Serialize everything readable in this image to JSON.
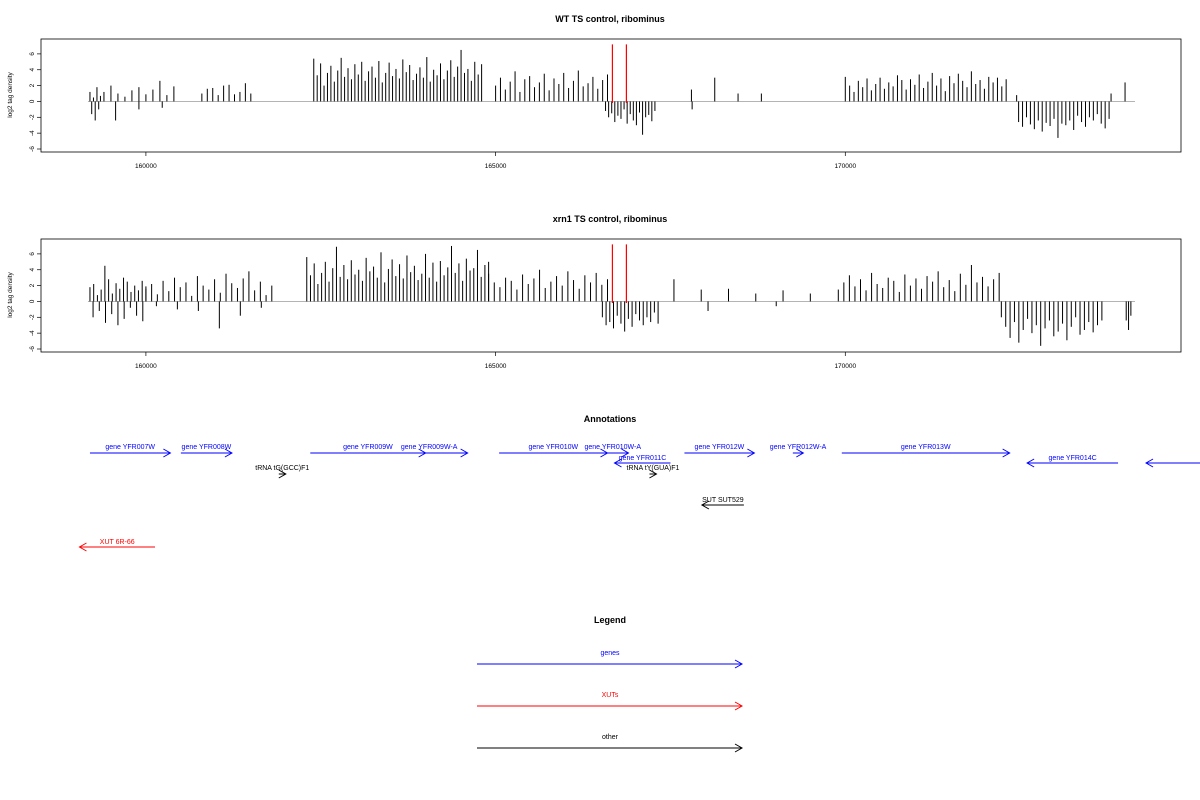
{
  "chart_data": [
    {
      "type": "bar",
      "title": "WT TS control, ribominus",
      "ylabel": "log2 tag density",
      "xlim": [
        158500,
        174800
      ],
      "ylim": [
        -6,
        7.5
      ],
      "xticks": [
        160000,
        165000,
        170000
      ],
      "yticks": [
        -6,
        -4,
        -2,
        0,
        2,
        4,
        6
      ],
      "baseline": 0,
      "marker_lines": [
        166670,
        166870
      ],
      "marker_color": "#ff0000",
      "bar_color": "#000000",
      "clusters": [
        {
          "from": 159200,
          "to": 159350,
          "pos": [
            1.2,
            0.5,
            1.8,
            0.7
          ],
          "neg": [
            -1.6,
            -2.4,
            -1.0
          ]
        },
        {
          "from": 159400,
          "to": 160400,
          "pos": [
            1.2,
            2.0,
            1.0,
            0.6,
            1.4,
            1.8,
            0.9,
            1.5,
            2.6,
            0.8,
            1.9
          ],
          "neg": [
            -2.4,
            -1.0,
            -0.8
          ]
        },
        {
          "from": 160800,
          "to": 161500,
          "pos": [
            1.0,
            1.6,
            1.7,
            0.8,
            2.0,
            2.1,
            0.9,
            1.2,
            2.3,
            1.0
          ],
          "neg": []
        },
        {
          "from": 162400,
          "to": 164800,
          "pos": [
            5.4,
            3.3,
            4.8,
            2.0,
            3.6,
            4.5,
            2.5,
            3.9,
            5.5,
            3.1,
            4.2,
            2.8,
            4.7,
            3.4,
            5.0,
            2.6,
            3.8,
            4.4,
            3.0,
            5.1,
            2.4,
            3.6,
            4.9,
            3.2,
            4.1,
            2.9,
            5.3,
            3.7,
            4.6,
            2.7,
            3.5,
            4.3,
            3.0,
            5.6,
            2.5,
            4.0,
            3.3,
            4.8,
            2.8,
            3.9,
            5.2,
            3.1,
            4.4,
            6.5,
            3.6,
            4.1,
            2.6,
            5.0,
            3.4,
            4.7
          ],
          "neg": []
        },
        {
          "from": 165000,
          "to": 166600,
          "pos": [
            2.0,
            3.0,
            1.5,
            2.5,
            3.8,
            1.2,
            2.8,
            3.2,
            1.8,
            2.4,
            3.5,
            1.4,
            2.9,
            2.2,
            3.6,
            1.7,
            2.6,
            3.9,
            1.9,
            2.3,
            3.1,
            1.6,
            2.7,
            3.4
          ],
          "neg": []
        },
        {
          "from": 166550,
          "to": 167300,
          "pos": [],
          "neg": [
            -1.2,
            -2.0,
            -1.5,
            -2.6,
            -1.8,
            -2.2,
            -1.0,
            -2.8,
            -1.6,
            -2.4,
            -3.0,
            -1.4,
            -4.2,
            -2.0,
            -1.7,
            -2.5,
            -1.2
          ]
        },
        {
          "from": 167800,
          "to": 168800,
          "pos": [
            1.5,
            3.0,
            1.0,
            1.0
          ],
          "neg": [
            -1.0
          ]
        },
        {
          "from": 170000,
          "to": 172300,
          "pos": [
            3.1,
            2.0,
            1.2,
            2.6,
            1.8,
            2.9,
            1.4,
            2.2,
            3.0,
            1.6,
            2.4,
            1.9,
            3.3,
            2.7,
            1.5,
            2.8,
            2.1,
            3.4,
            1.7,
            2.5,
            3.6,
            2.0,
            2.9,
            1.3,
            3.2,
            2.3,
            3.5,
            2.6,
            1.8,
            3.8,
            2.2,
            2.7,
            1.6,
            3.1,
            2.4,
            3.0,
            1.9,
            2.8
          ],
          "neg": []
        },
        {
          "from": 172450,
          "to": 173800,
          "pos": [
            0.8,
            1.0
          ],
          "neg": [
            -2.6,
            -3.2,
            -2.0,
            -2.9,
            -3.5,
            -2.4,
            -3.8,
            -2.7,
            -3.1,
            -2.2,
            -4.6,
            -2.8,
            -3.0,
            -2.4,
            -3.6,
            -1.8,
            -2.6,
            -3.2,
            -2.0,
            -2.4,
            -1.6,
            -2.8,
            -3.4,
            -2.2
          ]
        },
        {
          "from": 174000,
          "to": 174050,
          "pos": [
            2.4
          ],
          "neg": []
        }
      ]
    },
    {
      "type": "bar",
      "title": "xrn1 TS control, ribominus",
      "ylabel": "log2 tag density",
      "xlim": [
        158500,
        174800
      ],
      "ylim": [
        -6,
        7.5
      ],
      "xticks": [
        160000,
        165000,
        170000
      ],
      "yticks": [
        -6,
        -4,
        -2,
        0,
        2,
        4,
        6
      ],
      "baseline": 0,
      "marker_lines": [
        166670,
        166870
      ],
      "marker_color": "#ff0000",
      "bar_color": "#000000",
      "clusters": [
        {
          "from": 159200,
          "to": 160000,
          "pos": [
            1.8,
            2.2,
            0.8,
            1.5,
            4.5,
            2.8,
            1.0,
            2.3,
            1.6,
            3.0,
            2.5,
            1.2,
            2.0,
            1.4,
            2.6,
            1.9
          ],
          "neg": [
            -2.0,
            -1.2,
            -2.7,
            -1.6,
            -3.0,
            -2.2,
            -0.8,
            -1.8,
            -2.5
          ]
        },
        {
          "from": 160000,
          "to": 161800,
          "pos": [
            1.6,
            2.2,
            0.9,
            2.6,
            1.3,
            3.0,
            1.8,
            2.4,
            0.7,
            3.2,
            2.0,
            1.5,
            2.8,
            1.1,
            3.5,
            2.3,
            1.7,
            2.9,
            3.8,
            1.4,
            2.5,
            0.8,
            2.0
          ],
          "neg": [
            -0.6,
            -1.0,
            -1.2,
            -3.4,
            -1.8,
            -0.8
          ]
        },
        {
          "from": 162300,
          "to": 164900,
          "pos": [
            5.6,
            3.3,
            4.8,
            2.2,
            3.6,
            5.0,
            2.5,
            4.2,
            6.9,
            3.1,
            4.6,
            2.8,
            5.2,
            3.4,
            4.0,
            2.6,
            5.5,
            3.8,
            4.4,
            3.0,
            6.2,
            2.4,
            4.1,
            5.3,
            3.2,
            4.7,
            2.9,
            5.8,
            3.7,
            4.5,
            2.7,
            3.5,
            6.0,
            3.0,
            4.9,
            2.5,
            5.1,
            3.3,
            4.3,
            7.0,
            3.6,
            4.8,
            2.6,
            5.4,
            3.9,
            4.2,
            6.5,
            3.1,
            4.6,
            5.0
          ],
          "neg": []
        },
        {
          "from": 164900,
          "to": 166600,
          "pos": [
            3.5,
            2.4,
            1.8,
            3.0,
            2.6,
            1.5,
            3.4,
            2.2,
            2.9,
            4.0,
            1.7,
            2.5,
            3.2,
            2.0,
            3.8,
            2.7,
            1.6,
            3.3,
            2.4,
            3.6,
            2.1,
            2.8
          ],
          "neg": []
        },
        {
          "from": 166500,
          "to": 167350,
          "pos": [],
          "neg": [
            -2.0,
            -3.0,
            -2.6,
            -3.4,
            -1.8,
            -2.8,
            -3.8,
            -2.2,
            -3.2,
            -1.6,
            -2.4,
            -3.0,
            -2.0,
            -2.6,
            -1.4,
            -2.8
          ]
        },
        {
          "from": 167550,
          "to": 169500,
          "pos": [
            2.8,
            1.5,
            1.6,
            1.0,
            1.4,
            1.0
          ],
          "neg": [
            -1.2,
            -0.6
          ]
        },
        {
          "from": 169900,
          "to": 172200,
          "pos": [
            1.5,
            2.4,
            3.3,
            1.9,
            2.8,
            1.4,
            3.6,
            2.2,
            1.7,
            3.0,
            2.6,
            1.2,
            3.4,
            2.0,
            2.9,
            1.6,
            3.2,
            2.5,
            3.8,
            1.8,
            2.7,
            1.3,
            3.5,
            2.1,
            4.6,
            2.4,
            3.1,
            1.9,
            2.8,
            3.6
          ],
          "neg": []
        },
        {
          "from": 172200,
          "to": 173700,
          "pos": [],
          "neg": [
            -2.0,
            -3.2,
            -4.6,
            -2.6,
            -5.2,
            -3.6,
            -2.2,
            -4.0,
            -3.0,
            -5.6,
            -3.4,
            -2.4,
            -4.4,
            -3.8,
            -2.8,
            -4.9,
            -3.2,
            -2.0,
            -4.2,
            -3.6,
            -2.6,
            -3.9,
            -3.0,
            -2.4
          ]
        },
        {
          "from": 174000,
          "to": 174100,
          "pos": [],
          "neg": [
            -2.4,
            -3.6,
            -1.8
          ]
        }
      ]
    }
  ],
  "annotations": {
    "title": "Annotations",
    "xlim": [
      158500,
      174800
    ],
    "features": [
      {
        "label": "gene YFR007W",
        "x1": 159200,
        "x2": 160350,
        "row": 0,
        "color": "#0000ff",
        "dir": 1
      },
      {
        "label": "gene YFR008W",
        "x1": 160500,
        "x2": 161230,
        "row": 0,
        "color": "#0000ff",
        "dir": 1
      },
      {
        "label": "gene YFR009W",
        "x1": 162350,
        "x2": 164000,
        "row": 0,
        "color": "#0000ff",
        "dir": 1
      },
      {
        "label": "gene YFR009W-A",
        "x1": 163500,
        "x2": 164600,
        "row": 0,
        "color": "#0000ff",
        "dir": 1
      },
      {
        "label": "gene YFR010W",
        "x1": 165050,
        "x2": 166600,
        "row": 0,
        "color": "#0000ff",
        "dir": 1
      },
      {
        "label": "gene YFR010W-A",
        "x1": 166450,
        "x2": 166900,
        "row": 0,
        "color": "#0000ff",
        "dir": 1
      },
      {
        "label": "gene YFR012W",
        "x1": 167700,
        "x2": 168700,
        "row": 0,
        "color": "#0000ff",
        "dir": 1
      },
      {
        "label": "gene YFR012W-A",
        "x1": 169250,
        "x2": 169400,
        "row": 0,
        "color": "#0000ff",
        "dir": 1
      },
      {
        "label": "gene YFR013W",
        "x1": 169950,
        "x2": 172350,
        "row": 0,
        "color": "#0000ff",
        "dir": 1
      },
      {
        "label": "gene YFR011C",
        "x1": 166700,
        "x2": 167500,
        "row": 1,
        "color": "#0000ff",
        "dir": -1
      },
      {
        "label": "gene YFR014C",
        "x1": 172600,
        "x2": 173900,
        "row": 1,
        "color": "#0000ff",
        "dir": -1
      },
      {
        "label": "",
        "x1": 174300,
        "x2": 175200,
        "row": 1,
        "color": "#0000ff",
        "dir": -1
      },
      {
        "label": "tRNA tG(GCC)F1",
        "x1": 161900,
        "x2": 162000,
        "row": 2,
        "color": "#000000",
        "dir": 1
      },
      {
        "label": "tRNA tY(GUA)F1",
        "x1": 167200,
        "x2": 167300,
        "row": 2,
        "color": "#000000",
        "dir": 1
      },
      {
        "label": "SUT SUT529",
        "x1": 167950,
        "x2": 168550,
        "row": 3,
        "color": "#000000",
        "dir": -1
      },
      {
        "label": "XUT 6R-66",
        "x1": 159050,
        "x2": 160130,
        "row": 4,
        "color": "#ff0000",
        "dir": -1
      }
    ]
  },
  "legend": {
    "title": "Legend",
    "items": [
      {
        "label": "genes",
        "color": "#0000ff"
      },
      {
        "label": "XUTs",
        "color": "#ff0000"
      },
      {
        "label": "other",
        "color": "#000000"
      }
    ]
  }
}
